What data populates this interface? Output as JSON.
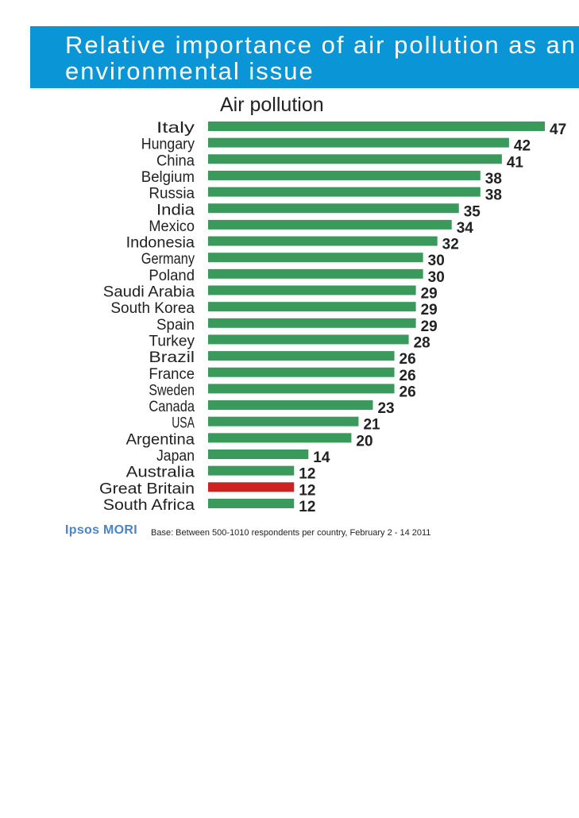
{
  "header": {
    "title": "Relative importance of air pollution as an environmental issue"
  },
  "footer": {
    "logo": "Ipsos MORI",
    "base_note": "Base: Between 500-1010 respondents per country, February 2 - 14 2011"
  },
  "colors": {
    "header_bg": "#0a96d6",
    "bar": "#3a9a5b",
    "highlight_bar": "#cc2222",
    "logo": "#4a84c4"
  },
  "chart_data": {
    "type": "bar",
    "orientation": "horizontal",
    "title": "Air pollution",
    "categories": [
      "Italy",
      "Hungary",
      "China",
      "Belgium",
      "Russia",
      "India",
      "Mexico",
      "Indonesia",
      "Germany",
      "Poland",
      "Saudi Arabia",
      "South Korea",
      "Spain",
      "Turkey",
      "Brazil",
      "France",
      "Sweden",
      "Canada",
      "USA",
      "Argentina",
      "Japan",
      "Australia",
      "Great Britain",
      "South Africa"
    ],
    "values": [
      47,
      42,
      41,
      38,
      38,
      35,
      34,
      32,
      30,
      30,
      29,
      29,
      29,
      28,
      26,
      26,
      26,
      23,
      21,
      20,
      14,
      12,
      12,
      12
    ],
    "highlight": "Great Britain",
    "xlim": [
      0,
      47
    ],
    "grid": false,
    "legend": "none"
  }
}
